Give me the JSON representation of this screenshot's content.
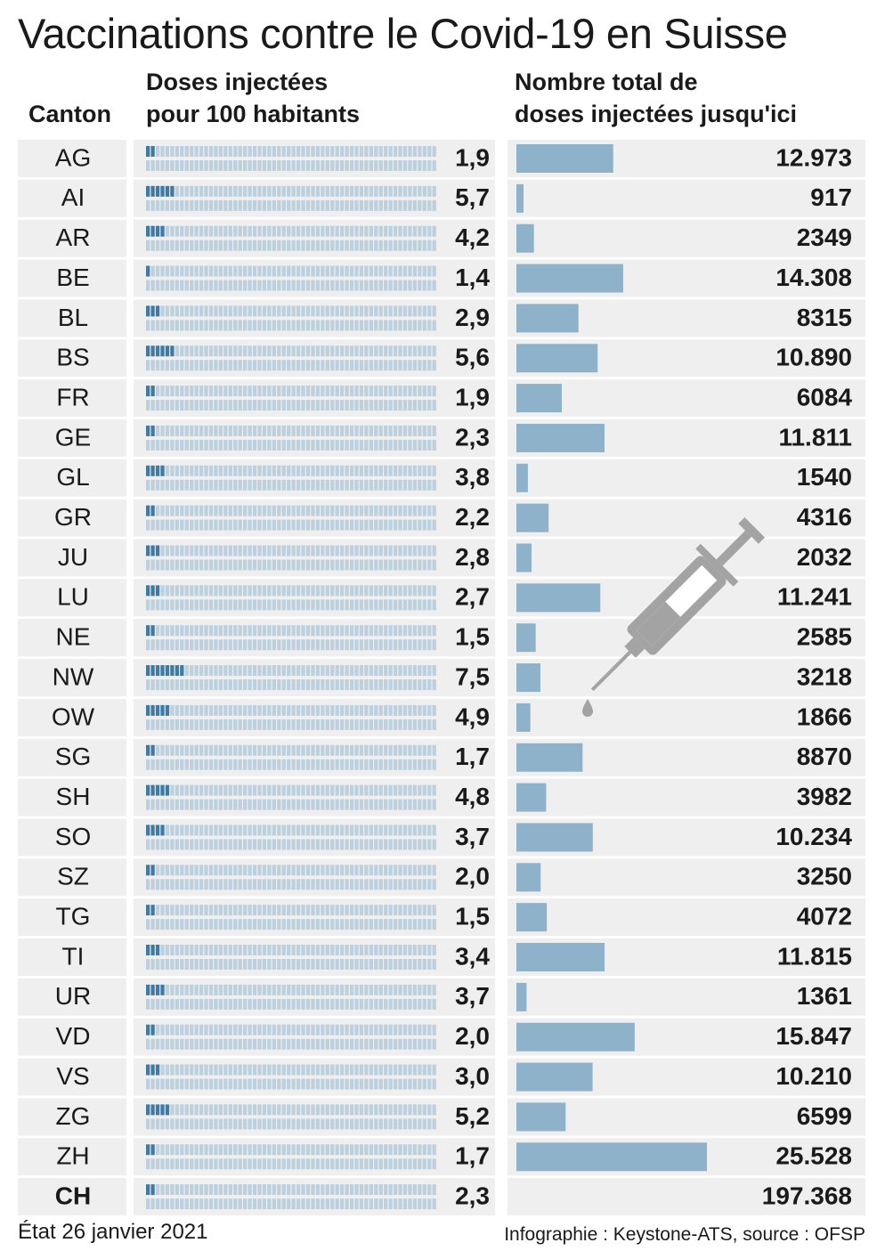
{
  "title": "Vaccinations contre le Covid-19 en Suisse",
  "headers": {
    "canton": "Canton",
    "per100": [
      "Doses injectées",
      "pour 100 habitants"
    ],
    "total": [
      "Nombre total de",
      "doses injectées jusqu'ici"
    ]
  },
  "footer": {
    "date": "État 26 janvier 2021",
    "source": "Infographie : Keystone-ATS, source : OFSP"
  },
  "colors": {
    "bar": "#8eb2c9",
    "bar_dark": "#3f7aa3",
    "dot_empty": "#bcd0de",
    "row_bg": "#efefef",
    "syringe": "#a3a3a3"
  },
  "decorations": {
    "syringe_icon": "syringe-icon"
  },
  "chart_data": {
    "type": "table",
    "columns": [
      "Canton",
      "Doses injectées pour 100 habitants",
      "Nombre total de doses injectées jusqu'ici"
    ],
    "rows": [
      {
        "canton": "AG",
        "per100": 1.9,
        "per100_label": "1,9",
        "total": 12973,
        "total_label": "12.973"
      },
      {
        "canton": "AI",
        "per100": 5.7,
        "per100_label": "5,7",
        "total": 917,
        "total_label": "917"
      },
      {
        "canton": "AR",
        "per100": 4.2,
        "per100_label": "4,2",
        "total": 2349,
        "total_label": "2349"
      },
      {
        "canton": "BE",
        "per100": 1.4,
        "per100_label": "1,4",
        "total": 14308,
        "total_label": "14.308"
      },
      {
        "canton": "BL",
        "per100": 2.9,
        "per100_label": "2,9",
        "total": 8315,
        "total_label": "8315"
      },
      {
        "canton": "BS",
        "per100": 5.6,
        "per100_label": "5,6",
        "total": 10890,
        "total_label": "10.890"
      },
      {
        "canton": "FR",
        "per100": 1.9,
        "per100_label": "1,9",
        "total": 6084,
        "total_label": "6084"
      },
      {
        "canton": "GE",
        "per100": 2.3,
        "per100_label": "2,3",
        "total": 11811,
        "total_label": "11.811"
      },
      {
        "canton": "GL",
        "per100": 3.8,
        "per100_label": "3,8",
        "total": 1540,
        "total_label": "1540"
      },
      {
        "canton": "GR",
        "per100": 2.2,
        "per100_label": "2,2",
        "total": 4316,
        "total_label": "4316"
      },
      {
        "canton": "JU",
        "per100": 2.8,
        "per100_label": "2,8",
        "total": 2032,
        "total_label": "2032"
      },
      {
        "canton": "LU",
        "per100": 2.7,
        "per100_label": "2,7",
        "total": 11241,
        "total_label": "11.241"
      },
      {
        "canton": "NE",
        "per100": 1.5,
        "per100_label": "1,5",
        "total": 2585,
        "total_label": "2585"
      },
      {
        "canton": "NW",
        "per100": 7.5,
        "per100_label": "7,5",
        "total": 3218,
        "total_label": "3218"
      },
      {
        "canton": "OW",
        "per100": 4.9,
        "per100_label": "4,9",
        "total": 1866,
        "total_label": "1866"
      },
      {
        "canton": "SG",
        "per100": 1.7,
        "per100_label": "1,7",
        "total": 8870,
        "total_label": "8870"
      },
      {
        "canton": "SH",
        "per100": 4.8,
        "per100_label": "4,8",
        "total": 3982,
        "total_label": "3982"
      },
      {
        "canton": "SO",
        "per100": 3.7,
        "per100_label": "3,7",
        "total": 10234,
        "total_label": "10.234"
      },
      {
        "canton": "SZ",
        "per100": 2.0,
        "per100_label": "2,0",
        "total": 3250,
        "total_label": "3250"
      },
      {
        "canton": "TG",
        "per100": 1.5,
        "per100_label": "1,5",
        "total": 4072,
        "total_label": "4072"
      },
      {
        "canton": "TI",
        "per100": 3.4,
        "per100_label": "3,4",
        "total": 11815,
        "total_label": "11.815"
      },
      {
        "canton": "UR",
        "per100": 3.7,
        "per100_label": "3,7",
        "total": 1361,
        "total_label": "1361"
      },
      {
        "canton": "VD",
        "per100": 2.0,
        "per100_label": "2,0",
        "total": 15847,
        "total_label": "15.847"
      },
      {
        "canton": "VS",
        "per100": 3.0,
        "per100_label": "3,0",
        "total": 10210,
        "total_label": "10.210"
      },
      {
        "canton": "ZG",
        "per100": 5.2,
        "per100_label": "5,2",
        "total": 6599,
        "total_label": "6599"
      },
      {
        "canton": "ZH",
        "per100": 1.7,
        "per100_label": "1,7",
        "total": 25528,
        "total_label": "25.528"
      }
    ],
    "total_row": {
      "canton": "CH",
      "per100": 2.3,
      "per100_label": "2,3",
      "total": 197368,
      "total_label": "197.368"
    }
  }
}
